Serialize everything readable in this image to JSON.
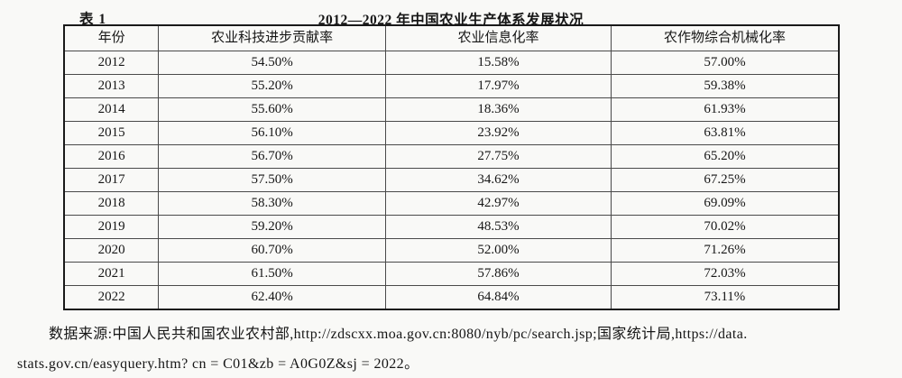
{
  "page": {
    "table_label": "表 1",
    "title": "2012—2022 年中国农业生产体系发展状况",
    "source_note_line1": "数据来源:中国人民共和国农业农村部,http://zdscxx.moa.gov.cn:8080/nyb/pc/search.jsp;国家统计局,https://data.",
    "source_note_line2": "stats.gov.cn/easyquery.htm? cn = C01&zb = A0G0Z&sj = 2022。"
  },
  "colors": {
    "page_bg": "#f9f9f7",
    "text": "#161616",
    "border_outer": "#1a1a1a",
    "border_inner": "#4a4a4a"
  },
  "chart_data": {
    "type": "table",
    "title": "2012—2022 年中国农业生产体系发展状况",
    "columns": [
      "年份",
      "农业科技进步贡献率",
      "农业信息化率",
      "农作物综合机械化率"
    ],
    "rows": [
      [
        "2012",
        "54.50%",
        "15.58%",
        "57.00%"
      ],
      [
        "2013",
        "55.20%",
        "17.97%",
        "59.38%"
      ],
      [
        "2014",
        "55.60%",
        "18.36%",
        "61.93%"
      ],
      [
        "2015",
        "56.10%",
        "23.92%",
        "63.81%"
      ],
      [
        "2016",
        "56.70%",
        "27.75%",
        "65.20%"
      ],
      [
        "2017",
        "57.50%",
        "34.62%",
        "67.25%"
      ],
      [
        "2018",
        "58.30%",
        "42.97%",
        "69.09%"
      ],
      [
        "2019",
        "59.20%",
        "48.53%",
        "70.02%"
      ],
      [
        "2020",
        "60.70%",
        "52.00%",
        "71.26%"
      ],
      [
        "2021",
        "61.50%",
        "57.86%",
        "72.03%"
      ],
      [
        "2022",
        "62.40%",
        "64.84%",
        "73.11%"
      ]
    ]
  }
}
